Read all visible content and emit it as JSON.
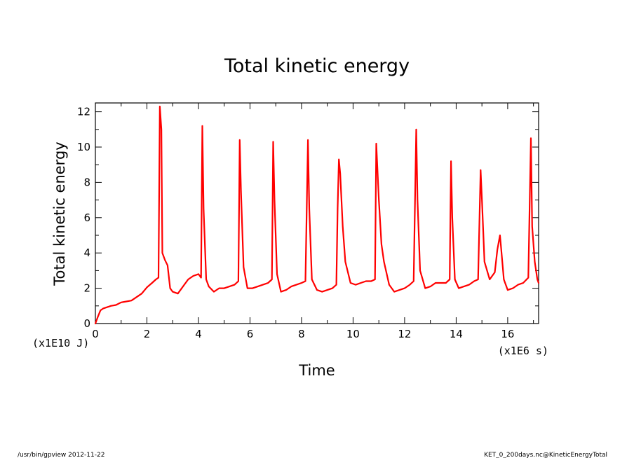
{
  "chart_data": {
    "type": "line",
    "title": "Total kinetic energy",
    "xlabel": "Time",
    "ylabel": "Total kinetic energy",
    "x_unit": "(x1E6 s)",
    "y_unit": "(x1E10 J)",
    "xlim": [
      0,
      17.2
    ],
    "ylim": [
      0,
      12.5
    ],
    "x_ticks": [
      0,
      2,
      4,
      6,
      8,
      10,
      12,
      14,
      16
    ],
    "y_ticks": [
      0,
      2,
      4,
      6,
      8,
      10,
      12
    ],
    "grid": false,
    "line_color": "#ff0000",
    "series": [
      {
        "values": [
          [
            0.0,
            0.0
          ],
          [
            0.1,
            0.4
          ],
          [
            0.2,
            0.75
          ],
          [
            0.3,
            0.85
          ],
          [
            0.4,
            0.9
          ],
          [
            0.5,
            0.95
          ],
          [
            0.6,
            1.0
          ],
          [
            0.8,
            1.05
          ],
          [
            1.0,
            1.2
          ],
          [
            1.2,
            1.25
          ],
          [
            1.4,
            1.3
          ],
          [
            1.6,
            1.5
          ],
          [
            1.8,
            1.7
          ],
          [
            2.0,
            2.05
          ],
          [
            2.2,
            2.3
          ],
          [
            2.35,
            2.5
          ],
          [
            2.45,
            2.6
          ],
          [
            2.5,
            12.3
          ],
          [
            2.56,
            11.0
          ],
          [
            2.6,
            4.0
          ],
          [
            2.7,
            3.6
          ],
          [
            2.8,
            3.3
          ],
          [
            2.9,
            2.0
          ],
          [
            3.0,
            1.8
          ],
          [
            3.2,
            1.7
          ],
          [
            3.4,
            2.1
          ],
          [
            3.6,
            2.5
          ],
          [
            3.8,
            2.7
          ],
          [
            4.0,
            2.8
          ],
          [
            4.1,
            2.6
          ],
          [
            4.15,
            11.2
          ],
          [
            4.2,
            6.5
          ],
          [
            4.3,
            2.5
          ],
          [
            4.4,
            2.1
          ],
          [
            4.6,
            1.8
          ],
          [
            4.8,
            2.0
          ],
          [
            5.0,
            2.0
          ],
          [
            5.2,
            2.1
          ],
          [
            5.4,
            2.2
          ],
          [
            5.55,
            2.4
          ],
          [
            5.6,
            10.4
          ],
          [
            5.65,
            7.5
          ],
          [
            5.75,
            3.2
          ],
          [
            5.9,
            2.0
          ],
          [
            6.1,
            2.0
          ],
          [
            6.3,
            2.1
          ],
          [
            6.5,
            2.2
          ],
          [
            6.7,
            2.3
          ],
          [
            6.85,
            2.5
          ],
          [
            6.9,
            10.3
          ],
          [
            6.95,
            7.0
          ],
          [
            7.05,
            2.8
          ],
          [
            7.2,
            1.8
          ],
          [
            7.4,
            1.9
          ],
          [
            7.6,
            2.1
          ],
          [
            7.8,
            2.2
          ],
          [
            8.0,
            2.3
          ],
          [
            8.15,
            2.4
          ],
          [
            8.25,
            10.4
          ],
          [
            8.3,
            6.5
          ],
          [
            8.4,
            2.5
          ],
          [
            8.6,
            1.9
          ],
          [
            8.8,
            1.8
          ],
          [
            9.0,
            1.9
          ],
          [
            9.2,
            2.0
          ],
          [
            9.35,
            2.2
          ],
          [
            9.4,
            6.5
          ],
          [
            9.45,
            9.3
          ],
          [
            9.5,
            8.5
          ],
          [
            9.6,
            5.5
          ],
          [
            9.7,
            3.5
          ],
          [
            9.9,
            2.3
          ],
          [
            10.1,
            2.2
          ],
          [
            10.3,
            2.3
          ],
          [
            10.5,
            2.4
          ],
          [
            10.7,
            2.4
          ],
          [
            10.85,
            2.5
          ],
          [
            10.9,
            10.2
          ],
          [
            11.0,
            7.0
          ],
          [
            11.1,
            4.5
          ],
          [
            11.2,
            3.5
          ],
          [
            11.4,
            2.2
          ],
          [
            11.6,
            1.8
          ],
          [
            11.8,
            1.9
          ],
          [
            12.0,
            2.0
          ],
          [
            12.2,
            2.2
          ],
          [
            12.35,
            2.4
          ],
          [
            12.45,
            11.0
          ],
          [
            12.5,
            7.0
          ],
          [
            12.6,
            3.0
          ],
          [
            12.8,
            2.0
          ],
          [
            13.0,
            2.1
          ],
          [
            13.2,
            2.3
          ],
          [
            13.4,
            2.3
          ],
          [
            13.6,
            2.3
          ],
          [
            13.75,
            2.5
          ],
          [
            13.8,
            9.2
          ],
          [
            13.85,
            6.0
          ],
          [
            13.95,
            2.5
          ],
          [
            14.1,
            2.0
          ],
          [
            14.3,
            2.1
          ],
          [
            14.5,
            2.2
          ],
          [
            14.7,
            2.4
          ],
          [
            14.85,
            2.5
          ],
          [
            14.95,
            8.7
          ],
          [
            15.0,
            7.0
          ],
          [
            15.1,
            3.5
          ],
          [
            15.3,
            2.5
          ],
          [
            15.5,
            2.9
          ],
          [
            15.6,
            4.2
          ],
          [
            15.7,
            5.0
          ],
          [
            15.75,
            4.2
          ],
          [
            15.85,
            2.5
          ],
          [
            16.0,
            1.9
          ],
          [
            16.2,
            2.0
          ],
          [
            16.4,
            2.2
          ],
          [
            16.6,
            2.3
          ],
          [
            16.8,
            2.6
          ],
          [
            16.9,
            10.5
          ],
          [
            16.95,
            5.5
          ],
          [
            17.05,
            3.5
          ],
          [
            17.15,
            2.5
          ],
          [
            17.2,
            2.3
          ]
        ]
      }
    ]
  },
  "footer": {
    "left": "/usr/bin/gpview  2012-11-22",
    "right": "KET_0_200days.nc@KineticEnergyTotal"
  }
}
